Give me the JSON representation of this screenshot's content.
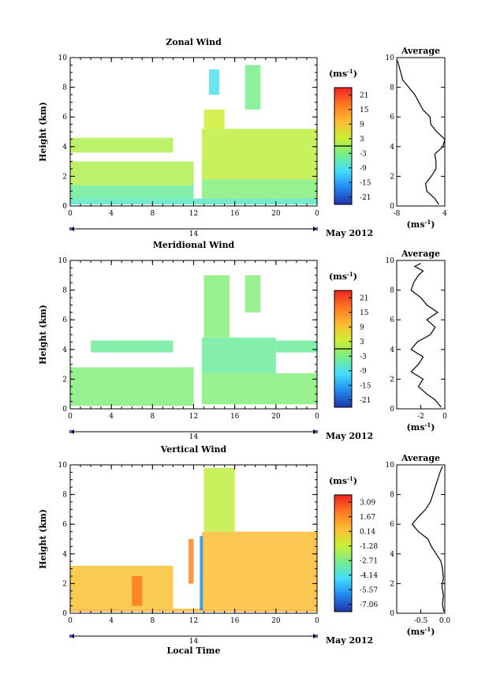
{
  "chart_data": [
    {
      "type": "heatmap",
      "title": "Zonal Wind",
      "xlabel": "",
      "ylabel": "Height (km)",
      "xlim": [
        0,
        24
      ],
      "ylim": [
        0,
        10
      ],
      "x_ticks": [
        "0",
        "4",
        "8",
        "12",
        "16",
        "20",
        "0"
      ],
      "y_ticks": [
        "0",
        "2",
        "4",
        "6",
        "8",
        "10"
      ],
      "date_bar": {
        "day_label": "14",
        "month_label": "May 2012"
      },
      "colorbar": {
        "unit": "(ms",
        "unit_sup": "-1",
        "unit_close": ")",
        "levels": [
          "21",
          "15",
          "9",
          "3",
          "-3",
          "-9",
          "-15",
          "-21"
        ],
        "zero_line": true
      },
      "regions": [
        {
          "x": [
            0,
            24
          ],
          "y": [
            0.1,
            0.5
          ],
          "value": -6
        },
        {
          "x": [
            0,
            12
          ],
          "y": [
            0.5,
            1.4
          ],
          "value": -4
        },
        {
          "x": [
            0,
            12
          ],
          "y": [
            1.4,
            3.0
          ],
          "value": 1
        },
        {
          "x": [
            0,
            10
          ],
          "y": [
            3.6,
            4.6
          ],
          "value": 1
        },
        {
          "x": [
            12.8,
            24
          ],
          "y": [
            0.5,
            1.8
          ],
          "value": -2
        },
        {
          "x": [
            12.8,
            24
          ],
          "y": [
            1.8,
            5.2
          ],
          "value": 2
        },
        {
          "x": [
            13,
            15
          ],
          "y": [
            5.2,
            6.5
          ],
          "value": 3
        },
        {
          "x": [
            13.5,
            14.5
          ],
          "y": [
            7.5,
            9.2
          ],
          "value": -8
        },
        {
          "x": [
            17,
            18.5
          ],
          "y": [
            6.5,
            9.5
          ],
          "value": -3
        }
      ],
      "average": {
        "title": "Average",
        "xlabel": "(ms",
        "xlabel_sup": "-1",
        "xlabel_close": ")",
        "xlim": [
          -8,
          4
        ],
        "x_ticks": [
          "-8",
          "4"
        ],
        "y_ticks": [
          "0",
          "2",
          "4",
          "6",
          "8",
          "10"
        ],
        "profile": [
          [
            2.5,
            0.1
          ],
          [
            1.5,
            0.5
          ],
          [
            -0.5,
            1.0
          ],
          [
            -0.8,
            1.5
          ],
          [
            0.6,
            2.0
          ],
          [
            1.8,
            2.5
          ],
          [
            1.8,
            3.0
          ],
          [
            1.5,
            3.5
          ],
          [
            3.5,
            4.0
          ],
          [
            4.0,
            4.5
          ],
          [
            2.0,
            5.0
          ],
          [
            0.5,
            5.5
          ],
          [
            0.3,
            6.0
          ],
          [
            -1.5,
            6.5
          ],
          [
            -2.5,
            7.0
          ],
          [
            -3.5,
            7.5
          ],
          [
            -5.0,
            8.0
          ],
          [
            -6.5,
            8.5
          ],
          [
            -7.0,
            9.0
          ],
          [
            -7.5,
            9.5
          ],
          [
            -7.8,
            9.8
          ]
        ]
      }
    },
    {
      "type": "heatmap",
      "title": "Meridional Wind",
      "xlabel": "",
      "ylabel": "Height (km)",
      "xlim": [
        0,
        24
      ],
      "ylim": [
        0,
        10
      ],
      "x_ticks": [
        "0",
        "4",
        "8",
        "12",
        "16",
        "20",
        "0"
      ],
      "y_ticks": [
        "0",
        "2",
        "4",
        "6",
        "8",
        "10"
      ],
      "date_bar": {
        "day_label": "14",
        "month_label": "May 2012"
      },
      "colorbar": {
        "unit": "(ms",
        "unit_sup": "-1",
        "unit_close": ")",
        "levels": [
          "21",
          "15",
          "9",
          "3",
          "-3",
          "-9",
          "-15",
          "-21"
        ],
        "zero_line": true
      },
      "regions": [
        {
          "x": [
            0,
            12
          ],
          "y": [
            0.2,
            2.8
          ],
          "value": -2
        },
        {
          "x": [
            2,
            10
          ],
          "y": [
            3.8,
            4.6
          ],
          "value": -4
        },
        {
          "x": [
            12.8,
            24
          ],
          "y": [
            0.3,
            2.4
          ],
          "value": -2
        },
        {
          "x": [
            12.8,
            20
          ],
          "y": [
            2.4,
            4.8
          ],
          "value": -4
        },
        {
          "x": [
            20,
            24
          ],
          "y": [
            3.8,
            4.6
          ],
          "value": -4
        },
        {
          "x": [
            13,
            15.5
          ],
          "y": [
            4.8,
            9.0
          ],
          "value": -2
        },
        {
          "x": [
            17,
            18.5
          ],
          "y": [
            6.5,
            9.0
          ],
          "value": -2
        }
      ],
      "average": {
        "title": "Average",
        "xlabel": "(ms",
        "xlabel_sup": "-1",
        "xlabel_close": ")",
        "xlim": [
          -4,
          0
        ],
        "x_ticks": [
          "-2",
          "0"
        ],
        "y_ticks": [
          "0",
          "2",
          "4",
          "6",
          "8",
          "10"
        ],
        "profile": [
          [
            -0.3,
            0.1
          ],
          [
            -0.8,
            0.6
          ],
          [
            -1.5,
            1.0
          ],
          [
            -2.2,
            1.5
          ],
          [
            -1.8,
            2.0
          ],
          [
            -2.8,
            2.5
          ],
          [
            -2.2,
            3.0
          ],
          [
            -1.8,
            3.5
          ],
          [
            -2.8,
            4.0
          ],
          [
            -2.3,
            4.5
          ],
          [
            -1.2,
            5.0
          ],
          [
            -0.8,
            5.5
          ],
          [
            -1.5,
            6.0
          ],
          [
            -0.6,
            6.5
          ],
          [
            -1.5,
            7.0
          ],
          [
            -2.0,
            7.5
          ],
          [
            -2.8,
            8.0
          ],
          [
            -2.6,
            8.5
          ],
          [
            -2.2,
            9.0
          ],
          [
            -1.8,
            9.3
          ],
          [
            -2.5,
            9.6
          ],
          [
            -2.0,
            9.8
          ]
        ]
      }
    },
    {
      "type": "heatmap",
      "title": "Vertical Wind",
      "xlabel": "Local Time",
      "ylabel": "Height (km)",
      "xlim": [
        0,
        24
      ],
      "ylim": [
        0,
        10
      ],
      "x_ticks": [
        "0",
        "4",
        "8",
        "12",
        "16",
        "20",
        "0"
      ],
      "y_ticks": [
        "0",
        "2",
        "4",
        "6",
        "8",
        "10"
      ],
      "date_bar": {
        "day_label": "14",
        "month_label": "May 2012"
      },
      "colorbar": {
        "unit": "(ms",
        "unit_sup": "-1",
        "unit_close": ")",
        "levels": [
          "3.09",
          "1.67",
          "0.14",
          "-1.28",
          "-2.71",
          "-4.14",
          "-5.57",
          "-7.06"
        ],
        "zero_line": false
      },
      "regions": [
        {
          "x": [
            0,
            10
          ],
          "y": [
            0.3,
            3.2
          ],
          "value": 0.0
        },
        {
          "x": [
            0,
            24
          ],
          "y": [
            0.1,
            0.3
          ],
          "value": 0.4
        },
        {
          "x": [
            12.8,
            24
          ],
          "y": [
            0.3,
            5.5
          ],
          "value": 0.1
        },
        {
          "x": [
            13,
            16
          ],
          "y": [
            5.5,
            9.8
          ],
          "value": -1.5
        },
        {
          "x": [
            6,
            7
          ],
          "y": [
            0.5,
            2.5
          ],
          "value": 1.6
        },
        {
          "x": [
            11.5,
            12
          ],
          "y": [
            2.0,
            5.0
          ],
          "value": 1.3
        },
        {
          "x": [
            12.6,
            12.9
          ],
          "y": [
            0.2,
            5.2
          ],
          "value": -5.5
        }
      ],
      "average": {
        "title": "Average",
        "xlabel": "(ms",
        "xlabel_sup": "-1",
        "xlabel_close": ")",
        "xlim": [
          -1.0,
          0.0
        ],
        "x_ticks": [
          "-0.5",
          "0.0"
        ],
        "y_ticks": [
          "0",
          "2",
          "4",
          "6",
          "8",
          "10"
        ],
        "profile": [
          [
            -0.02,
            0.1
          ],
          [
            -0.05,
            0.6
          ],
          [
            -0.03,
            1.2
          ],
          [
            -0.06,
            1.8
          ],
          [
            -0.03,
            2.4
          ],
          [
            -0.05,
            3.0
          ],
          [
            -0.08,
            3.5
          ],
          [
            -0.18,
            4.0
          ],
          [
            -0.28,
            4.5
          ],
          [
            -0.35,
            5.0
          ],
          [
            -0.55,
            5.5
          ],
          [
            -0.68,
            6.0
          ],
          [
            -0.55,
            6.5
          ],
          [
            -0.4,
            7.0
          ],
          [
            -0.3,
            7.5
          ],
          [
            -0.25,
            8.0
          ],
          [
            -0.2,
            8.5
          ],
          [
            -0.15,
            9.0
          ],
          [
            -0.1,
            9.5
          ],
          [
            -0.05,
            9.9
          ]
        ]
      }
    }
  ]
}
